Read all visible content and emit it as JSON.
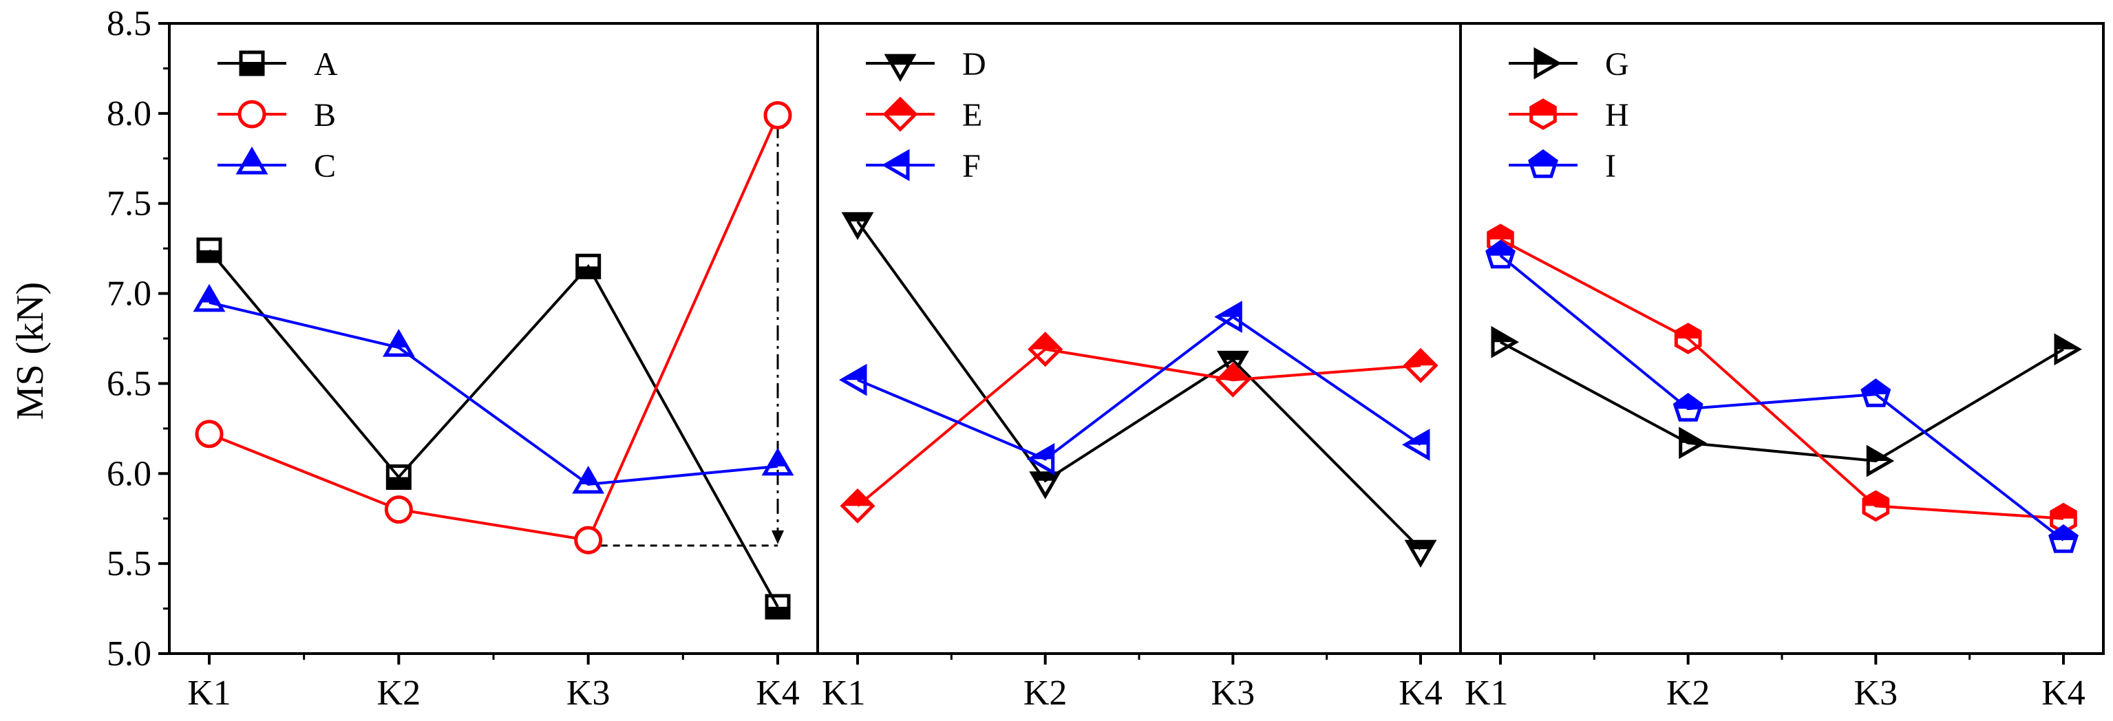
{
  "chart_data": {
    "type": "line",
    "ylabel": "MS (kN)",
    "ylim": [
      5.0,
      8.5
    ],
    "yticks": [
      "5.0",
      "5.5",
      "6.0",
      "6.5",
      "7.0",
      "7.5",
      "8.0",
      "8.5"
    ],
    "categories": [
      "K1",
      "K2",
      "K3",
      "K4"
    ],
    "panels": [
      {
        "legend_position": "top-left",
        "series": [
          {
            "name": "A",
            "color": "#000000",
            "marker": "square",
            "values": [
              7.24,
              5.98,
              7.15,
              5.26
            ]
          },
          {
            "name": "B",
            "color": "#ff0000",
            "marker": "circle",
            "values": [
              6.22,
              5.8,
              5.63,
              7.99
            ]
          },
          {
            "name": "C",
            "color": "#0000ff",
            "marker": "triangle-up",
            "values": [
              6.95,
              6.7,
              5.94,
              6.04
            ]
          }
        ],
        "annotation": {
          "type": "range-arrow",
          "category": "K4",
          "from": 8.0,
          "to": 5.6,
          "baseline_from": "K3"
        }
      },
      {
        "legend_position": "top-left",
        "series": [
          {
            "name": "D",
            "color": "#000000",
            "marker": "triangle-down",
            "values": [
              7.4,
              5.96,
              6.63,
              5.58
            ]
          },
          {
            "name": "E",
            "color": "#ff0000",
            "marker": "diamond",
            "values": [
              5.82,
              6.69,
              6.52,
              6.6
            ]
          },
          {
            "name": "F",
            "color": "#0000ff",
            "marker": "triangle-left",
            "values": [
              6.52,
              6.08,
              6.87,
              6.16
            ]
          }
        ]
      },
      {
        "legend_position": "top-left",
        "series": [
          {
            "name": "G",
            "color": "#000000",
            "marker": "triangle-right",
            "values": [
              6.73,
              6.17,
              6.07,
              6.69
            ]
          },
          {
            "name": "H",
            "color": "#ff0000",
            "marker": "hexagon",
            "values": [
              7.3,
              6.75,
              5.82,
              5.75
            ]
          },
          {
            "name": "I",
            "color": "#0000ff",
            "marker": "pentagon",
            "values": [
              7.21,
              6.36,
              6.44,
              5.63
            ]
          }
        ]
      }
    ]
  }
}
